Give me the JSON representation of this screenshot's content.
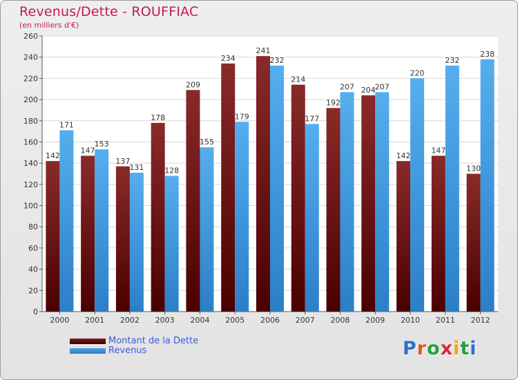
{
  "title": "Revenus/Dette - ROUFFIAC",
  "subtitle": "(en milliers d'€)",
  "logo": {
    "text": "Proxiti",
    "letter_colors": [
      "#2f6fd0",
      "#e05a1c",
      "#2a9d3f",
      "#d7263d",
      "#f2a900",
      "#2a9d3f",
      "#2f6fd0"
    ]
  },
  "chart_data": {
    "type": "bar",
    "categories": [
      "2000",
      "2001",
      "2002",
      "2003",
      "2004",
      "2005",
      "2006",
      "2007",
      "2008",
      "2009",
      "2010",
      "2011",
      "2012"
    ],
    "series": [
      {
        "name": "Montant de la Dette",
        "color": "#7a1c1c",
        "values": [
          142,
          147,
          137,
          178,
          209,
          234,
          241,
          214,
          192,
          204,
          142,
          147,
          130
        ]
      },
      {
        "name": "Revenus",
        "color": "#4aa3e8",
        "values": [
          171,
          153,
          131,
          128,
          155,
          179,
          232,
          177,
          207,
          207,
          220,
          232,
          238
        ]
      }
    ],
    "ylim": [
      0,
      260
    ],
    "yticks": [
      0,
      20,
      40,
      60,
      80,
      100,
      120,
      140,
      160,
      180,
      200,
      220,
      240,
      260
    ],
    "grid": true,
    "legend_position": "bottom-left"
  }
}
